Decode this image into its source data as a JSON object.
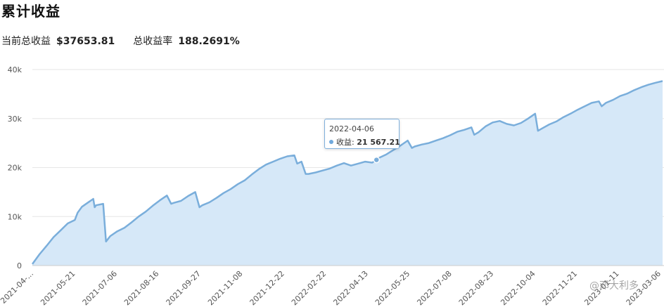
{
  "header": {
    "title": "累计收益",
    "current_label": "当前总收益",
    "current_value": "$37653.81",
    "rate_label": "总收益率",
    "rate_value": "188.2691%"
  },
  "tooltip": {
    "date": "2022-04-06",
    "label": "收益:",
    "value": "21 567.21"
  },
  "watermark": "@邓大利多",
  "colors": {
    "line": "#7aaedb",
    "area": "#d6e8f8",
    "grid": "#e6e6e6"
  },
  "chart_data": {
    "type": "area",
    "title": "累计收益",
    "ylim": [
      0,
      40000
    ],
    "y_ticks": [
      "0",
      "10k",
      "20k",
      "30k",
      "40k"
    ],
    "x_tick_labels": [
      "2021-04-...",
      "2021-05-21",
      "2021-07-06",
      "2021-08-16",
      "2021-09-27",
      "2021-11-08",
      "2021-12-22",
      "2022-02-22",
      "2022-04-13",
      "2022-05-25",
      "2022-07-08",
      "2022-08-23",
      "2022-10-04",
      "2022-11-21",
      "2023-01-11",
      "2023-03-06"
    ],
    "series": [
      {
        "name": "收益",
        "points": [
          [
            0,
            300
          ],
          [
            1,
            2300
          ],
          [
            2,
            4000
          ],
          [
            3,
            5800
          ],
          [
            4,
            7200
          ],
          [
            5,
            8600
          ],
          [
            6,
            9300
          ],
          [
            6.4,
            10800
          ],
          [
            7,
            12000
          ],
          [
            8,
            13000
          ],
          [
            8.6,
            13600
          ],
          [
            8.8,
            11900
          ],
          [
            9,
            12300
          ],
          [
            10,
            12600
          ],
          [
            10.4,
            4900
          ],
          [
            11,
            6000
          ],
          [
            12,
            7000
          ],
          [
            13,
            7700
          ],
          [
            14,
            8800
          ],
          [
            15,
            10000
          ],
          [
            16,
            11000
          ],
          [
            17,
            12200
          ],
          [
            18,
            13300
          ],
          [
            19,
            14300
          ],
          [
            19.6,
            12600
          ],
          [
            20,
            12800
          ],
          [
            21,
            13200
          ],
          [
            22,
            14200
          ],
          [
            23,
            15000
          ],
          [
            23.6,
            11900
          ],
          [
            24,
            12300
          ],
          [
            25,
            12900
          ],
          [
            26,
            13800
          ],
          [
            27,
            14800
          ],
          [
            28,
            15600
          ],
          [
            29,
            16600
          ],
          [
            30,
            17400
          ],
          [
            31,
            18600
          ],
          [
            32,
            19700
          ],
          [
            33,
            20600
          ],
          [
            34,
            21200
          ],
          [
            35,
            21800
          ],
          [
            36,
            22300
          ],
          [
            37,
            22500
          ],
          [
            37.4,
            20800
          ],
          [
            38,
            21200
          ],
          [
            38.6,
            18700
          ],
          [
            39,
            18700
          ],
          [
            40,
            19000
          ],
          [
            41,
            19400
          ],
          [
            42,
            19800
          ],
          [
            43,
            20400
          ],
          [
            44,
            20900
          ],
          [
            45,
            20400
          ],
          [
            46,
            20800
          ],
          [
            47,
            21200
          ],
          [
            48,
            21000
          ],
          [
            48.6,
            21567.21
          ],
          [
            49,
            22000
          ],
          [
            50,
            22700
          ],
          [
            51,
            23600
          ],
          [
            52,
            24500
          ],
          [
            53,
            25500
          ],
          [
            53.6,
            24000
          ],
          [
            54,
            24300
          ],
          [
            55,
            24700
          ],
          [
            56,
            25000
          ],
          [
            57,
            25500
          ],
          [
            58,
            26000
          ],
          [
            59,
            26600
          ],
          [
            60,
            27300
          ],
          [
            61,
            27700
          ],
          [
            62,
            28200
          ],
          [
            62.4,
            26700
          ],
          [
            63,
            27200
          ],
          [
            64,
            28400
          ],
          [
            65,
            29200
          ],
          [
            66,
            29500
          ],
          [
            67,
            28900
          ],
          [
            68,
            28600
          ],
          [
            69,
            29100
          ],
          [
            70,
            30000
          ],
          [
            71,
            31000
          ],
          [
            71.4,
            27500
          ],
          [
            72,
            28000
          ],
          [
            73,
            28800
          ],
          [
            74,
            29400
          ],
          [
            75,
            30300
          ],
          [
            76,
            31000
          ],
          [
            77,
            31800
          ],
          [
            78,
            32500
          ],
          [
            79,
            33200
          ],
          [
            80,
            33500
          ],
          [
            80.4,
            32500
          ],
          [
            81,
            33200
          ],
          [
            82,
            33800
          ],
          [
            83,
            34600
          ],
          [
            84,
            35100
          ],
          [
            85,
            35800
          ],
          [
            86,
            36400
          ],
          [
            87,
            36900
          ],
          [
            88,
            37300
          ],
          [
            89,
            37653.81
          ]
        ]
      }
    ],
    "highlight": {
      "date": "2022-04-06",
      "value": 21567.21
    },
    "grid": true
  }
}
